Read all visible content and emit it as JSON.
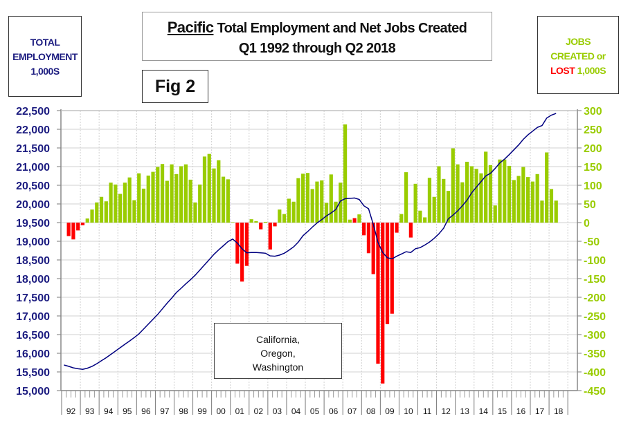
{
  "left_box": {
    "line1": "TOTAL",
    "line2": "EMPLOYMENT",
    "line3": "1,000S"
  },
  "right_box": {
    "line1": "JOBS",
    "line2": "CREATED or",
    "lost": "LOST",
    "units": "1,000S"
  },
  "title": {
    "region": "Pacific",
    "rest": "Total Employment and Net Jobs Created",
    "line2": "Q1 1992 through Q2 2018"
  },
  "figure_label": "Fig 2",
  "legend_box": {
    "line1": "California,",
    "line2": "Oregon,",
    "line3": "Washington"
  },
  "colors": {
    "gain": "#99cc00",
    "loss": "#ff0000",
    "employment_line": "#000080",
    "left_axis": "#1c1c80"
  },
  "chart_data": {
    "type": "bar+line",
    "grid": true,
    "x_tick_labels": [
      "92",
      "93",
      "94",
      "95",
      "96",
      "97",
      "98",
      "99",
      "00",
      "01",
      "02",
      "03",
      "04",
      "05",
      "06",
      "07",
      "08",
      "09",
      "10",
      "11",
      "12",
      "13",
      "14",
      "15",
      "16",
      "17",
      "18"
    ],
    "left_axis": {
      "label": "TOTAL EMPLOYMENT 1,000S",
      "ylim": [
        15000,
        22500
      ],
      "step": 500,
      "tick_labels": [
        "15,000",
        "15,500",
        "16,000",
        "16,500",
        "17,000",
        "17,500",
        "18,000",
        "18,500",
        "19,000",
        "19,500",
        "20,000",
        "20,500",
        "21,000",
        "21,500",
        "22,000",
        "22,500"
      ]
    },
    "right_axis": {
      "label": "JOBS CREATED or LOST 1,000S",
      "ylim": [
        -450,
        300
      ],
      "step": 50,
      "tick_labels": [
        "-450",
        "-400",
        "-350",
        "-300",
        "-250",
        "-200",
        "-150",
        "-100",
        "-50",
        "0",
        "50",
        "100",
        "150",
        "200",
        "250",
        "300"
      ]
    },
    "line_series": {
      "axis": "left",
      "start": "1992 Q1",
      "frequency": "quarterly",
      "values": [
        15685,
        15650,
        15610,
        15585,
        15570,
        15600,
        15650,
        15720,
        15800,
        15880,
        15970,
        16060,
        16150,
        16240,
        16330,
        16420,
        16520,
        16650,
        16780,
        16910,
        17040,
        17190,
        17340,
        17480,
        17630,
        17740,
        17860,
        17970,
        18090,
        18230,
        18370,
        18510,
        18650,
        18770,
        18880,
        18990,
        19060,
        18950,
        18800,
        18690,
        18700,
        18700,
        18690,
        18680,
        18610,
        18600,
        18630,
        18680,
        18760,
        18850,
        18980,
        19150,
        19260,
        19380,
        19490,
        19580,
        19680,
        19760,
        19850,
        20080,
        20140,
        20150,
        20160,
        20120,
        19950,
        19870,
        19450,
        18970,
        18700,
        18560,
        18530,
        18600,
        18660,
        18720,
        18700,
        18800,
        18830,
        18900,
        18980,
        19080,
        19200,
        19350,
        19600,
        19700,
        19815,
        19950,
        20100,
        20300,
        20450,
        20600,
        20750,
        20820,
        20950,
        21100,
        21200,
        21320,
        21450,
        21580,
        21730,
        21850,
        21950,
        22050,
        22100,
        22300,
        22380,
        22425
      ]
    },
    "bar_series": {
      "axis": "right",
      "start": "1992 Q2",
      "frequency": "quarterly",
      "values": [
        -36,
        -45,
        -21,
        -7,
        11,
        35,
        54,
        69,
        57,
        107,
        102,
        77,
        107,
        121,
        60,
        132,
        91,
        126,
        136,
        149,
        157,
        112,
        156,
        130,
        151,
        156,
        115,
        54,
        102,
        177,
        184,
        145,
        167,
        123,
        116,
        1,
        -110,
        -158,
        -116,
        9,
        4,
        -18,
        2,
        -72,
        -10,
        35,
        23,
        64,
        56,
        119,
        131,
        133,
        90,
        110,
        113,
        53,
        129,
        56,
        107,
        263,
        8,
        12,
        22,
        -34,
        -82,
        -138,
        -378,
        -431,
        -272,
        -244,
        -27,
        23,
        135,
        -40,
        104,
        32,
        14,
        120,
        69,
        151,
        117,
        85,
        199,
        156,
        108,
        163,
        151,
        144,
        132,
        190,
        154,
        46,
        169,
        169,
        152,
        114,
        125,
        149,
        122,
        110,
        130,
        59,
        188,
        90,
        59
      ],
      "red_positive_bars": [
        "2007 Q3"
      ]
    }
  }
}
